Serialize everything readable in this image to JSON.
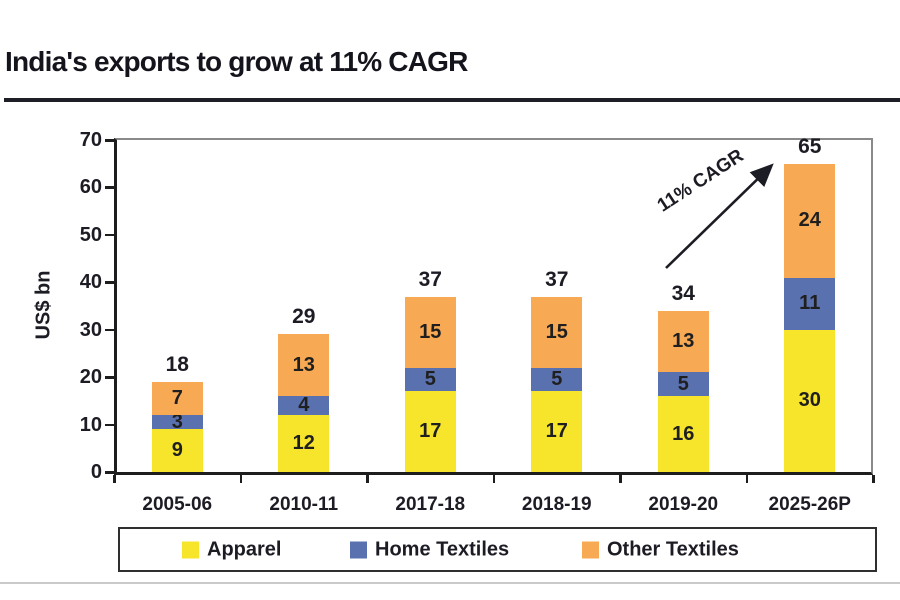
{
  "title": "India's exports to grow at 11% CAGR",
  "chart_data": {
    "type": "bar",
    "stacked": true,
    "title": "India's exports to grow at 11% CAGR",
    "xlabel": "",
    "ylabel": "US$ bn",
    "ylim": [
      0,
      70
    ],
    "yticks": [
      0,
      10,
      20,
      30,
      40,
      50,
      60,
      70
    ],
    "grid": false,
    "legend_position": "bottom",
    "categories": [
      "2005-06",
      "2010-11",
      "2017-18",
      "2018-19",
      "2019-20",
      "2025-26P"
    ],
    "series": [
      {
        "name": "Apparel",
        "color": "#F6E52B",
        "values": [
          9,
          12,
          17,
          17,
          16,
          30
        ]
      },
      {
        "name": "Home Textiles",
        "color": "#5A71B0",
        "values": [
          3,
          4,
          5,
          5,
          5,
          11
        ]
      },
      {
        "name": "Other Textiles",
        "color": "#F7A954",
        "values": [
          7,
          13,
          15,
          15,
          13,
          24
        ]
      }
    ],
    "totals": [
      18,
      29,
      37,
      37,
      34,
      65
    ],
    "annotation": "11% CAGR"
  },
  "colors": {
    "title_text": "#14141C",
    "body_text": "#1C1C24",
    "axis": "#1D1D1D",
    "plot_border_gray": "#8A8A8A",
    "legend_border": "#2F2F2F",
    "title_rule": "#1E1E26",
    "bottom_rule": "#C9C9C9"
  }
}
